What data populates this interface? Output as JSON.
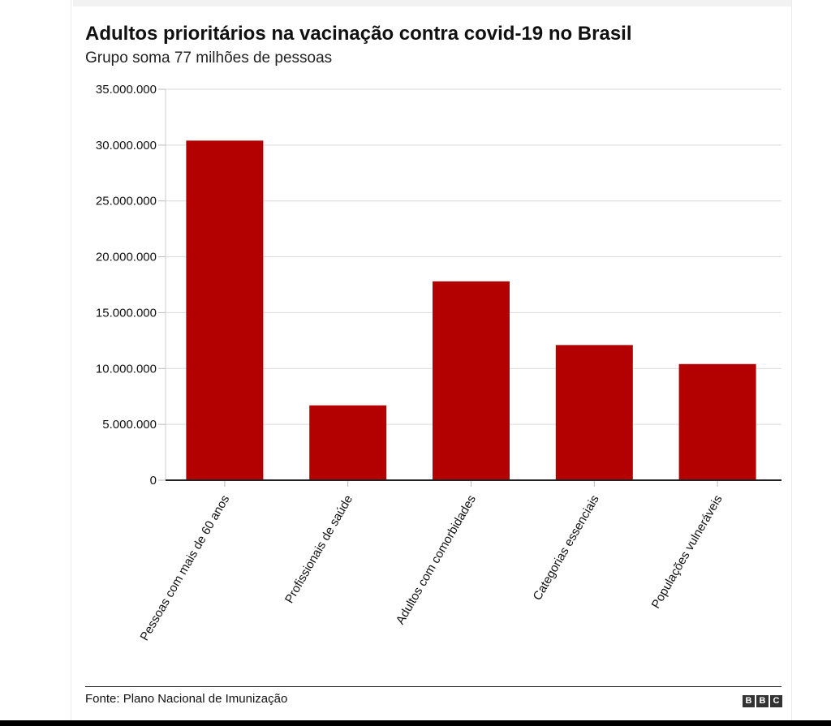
{
  "header": {
    "title": "Adultos prioritários na vacinação contra covid-19 no Brasil",
    "subtitle": "Grupo soma 77 milhões de pessoas"
  },
  "footer": {
    "source": "Fonte: Plano Nacional de Imunização",
    "logo_letters": [
      "B",
      "B",
      "C"
    ]
  },
  "colors": {
    "bar": "#b30000",
    "grid": "#d9d9d9",
    "axis": "#222222"
  },
  "chart_data": {
    "type": "bar",
    "title": "Adultos prioritários na vacinação contra covid-19 no Brasil",
    "subtitle": "Grupo soma 77 milhões de pessoas",
    "categories": [
      "Pessoas com mais de 60 anos",
      "Profissionais de saúde",
      "Adultos com comorbidades",
      "Categorias essenciais",
      "Populações vulneráveis"
    ],
    "values": [
      30400000,
      6700000,
      17800000,
      12100000,
      10400000
    ],
    "ylim": [
      0,
      35000000
    ],
    "yticks": [
      0,
      5000000,
      10000000,
      15000000,
      20000000,
      25000000,
      30000000,
      35000000
    ],
    "ytick_labels": [
      "0",
      "5.000.000",
      "10.000.000",
      "15.000.000",
      "20.000.000",
      "25.000.000",
      "30.000.000",
      "35.000.000"
    ],
    "grid": true,
    "legend": "none"
  }
}
